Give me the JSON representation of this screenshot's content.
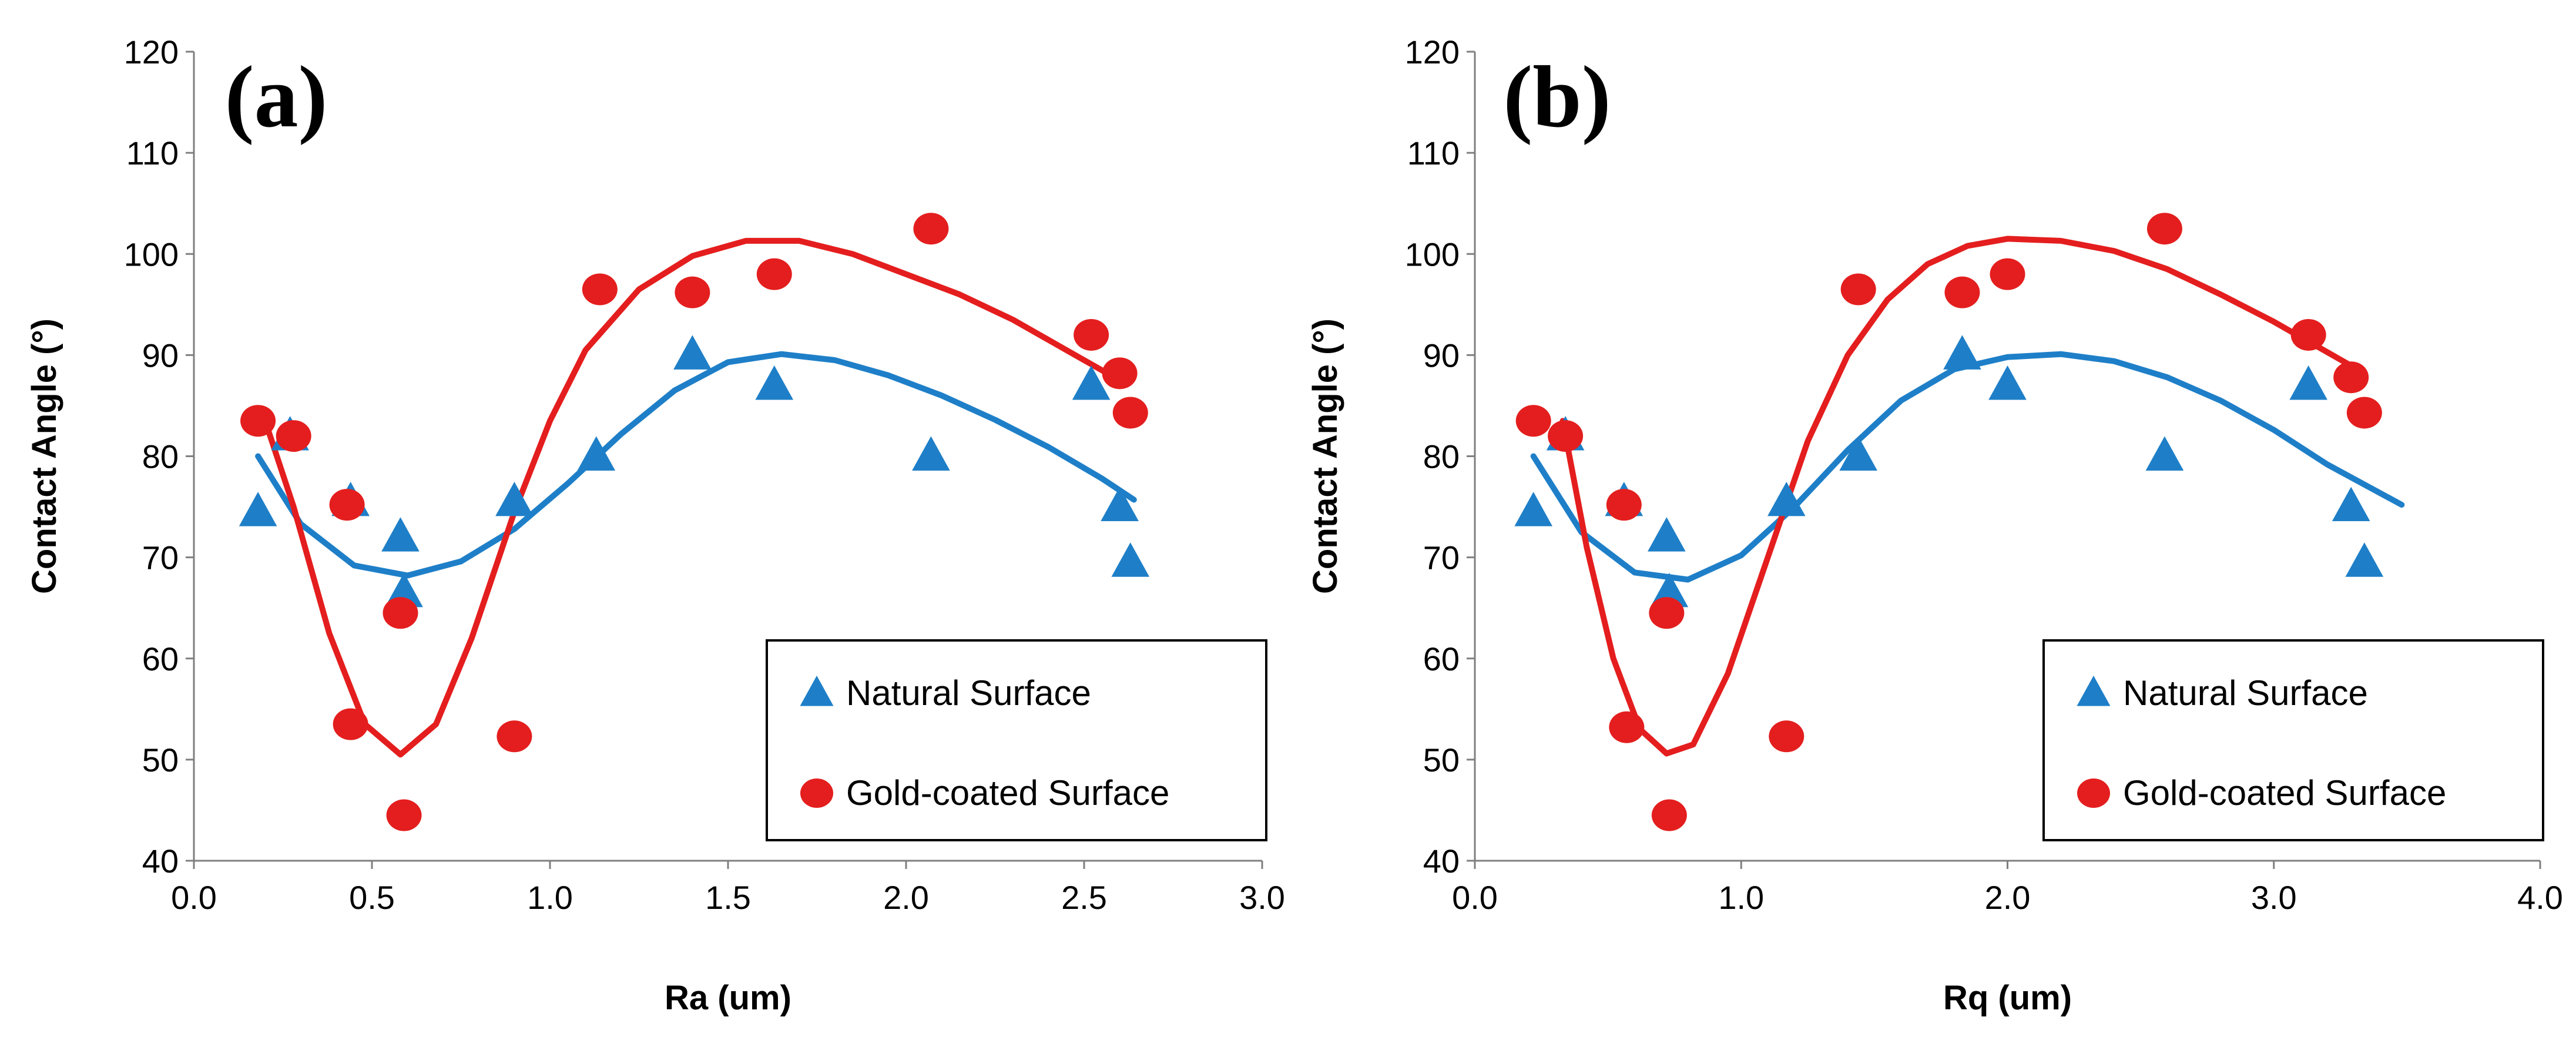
{
  "chart_data": [
    {
      "type": "scatter",
      "panel_label": "(a)",
      "xlabel": "Ra (um)",
      "ylabel": "Contact Angle (°)",
      "xlim": [
        0.0,
        3.0
      ],
      "ylim": [
        40,
        120
      ],
      "x_ticks": [
        "0.0",
        "0.5",
        "1.0",
        "1.5",
        "2.0",
        "2.5",
        "3.0"
      ],
      "y_ticks": [
        "40",
        "50",
        "60",
        "70",
        "80",
        "90",
        "100",
        "110",
        "120"
      ],
      "legend": [
        "Natural Surface",
        "Gold-coated Surface"
      ],
      "series": [
        {
          "name": "Natural Surface",
          "marker": "triangle",
          "color": "#1E7FC8",
          "x": [
            0.18,
            0.27,
            0.44,
            0.58,
            0.59,
            0.9,
            1.13,
            1.4,
            1.63,
            2.07,
            2.52,
            2.6,
            2.63
          ],
          "y": [
            74.5,
            82,
            75.5,
            72,
            66.5,
            75.5,
            80,
            90,
            87,
            80,
            87,
            75,
            69.5
          ],
          "trend": [
            [
              0.18,
              80
            ],
            [
              0.3,
              73.3
            ],
            [
              0.45,
              69.2
            ],
            [
              0.6,
              68.2
            ],
            [
              0.75,
              69.6
            ],
            [
              0.9,
              72.8
            ],
            [
              1.05,
              77.3
            ],
            [
              1.2,
              82.2
            ],
            [
              1.35,
              86.5
            ],
            [
              1.5,
              89.3
            ],
            [
              1.65,
              90.1
            ],
            [
              1.8,
              89.5
            ],
            [
              1.95,
              88
            ],
            [
              2.1,
              86
            ],
            [
              2.25,
              83.6
            ],
            [
              2.4,
              80.9
            ],
            [
              2.55,
              77.8
            ],
            [
              2.64,
              75.7
            ]
          ]
        },
        {
          "name": "Gold-coated Surface",
          "marker": "circle",
          "color": "#E41E1E",
          "x": [
            0.18,
            0.28,
            0.43,
            0.44,
            0.58,
            0.59,
            0.9,
            1.14,
            1.4,
            1.63,
            2.07,
            2.52,
            2.6,
            2.63
          ],
          "y": [
            83.5,
            82,
            75.2,
            53.5,
            64.5,
            44.5,
            52.3,
            96.5,
            96.2,
            98,
            102.5,
            92,
            88.2,
            84.3
          ],
          "trend": [
            [
              0.2,
              83.5
            ],
            [
              0.28,
              75
            ],
            [
              0.38,
              62.5
            ],
            [
              0.48,
              53.5
            ],
            [
              0.58,
              50.5
            ],
            [
              0.68,
              53.5
            ],
            [
              0.78,
              62
            ],
            [
              0.9,
              74.5
            ],
            [
              1.0,
              83.5
            ],
            [
              1.1,
              90.5
            ],
            [
              1.25,
              96.5
            ],
            [
              1.4,
              99.8
            ],
            [
              1.55,
              101.3
            ],
            [
              1.7,
              101.3
            ],
            [
              1.85,
              100
            ],
            [
              2.0,
              98
            ],
            [
              2.15,
              96
            ],
            [
              2.3,
              93.5
            ],
            [
              2.45,
              90.5
            ],
            [
              2.6,
              87.5
            ]
          ]
        }
      ]
    },
    {
      "type": "scatter",
      "panel_label": "(b)",
      "xlabel": "Rq (um)",
      "ylabel": "Contact Angle (°)",
      "xlim": [
        0.0,
        4.0
      ],
      "ylim": [
        40,
        120
      ],
      "x_ticks": [
        "0.0",
        "1.0",
        "2.0",
        "3.0",
        "4.0"
      ],
      "y_ticks": [
        "40",
        "50",
        "60",
        "70",
        "80",
        "90",
        "100",
        "110",
        "120"
      ],
      "legend": [
        "Natural Surface",
        "Gold-coated Surface"
      ],
      "series": [
        {
          "name": "Natural Surface",
          "marker": "triangle",
          "color": "#1E7FC8",
          "x": [
            0.22,
            0.34,
            0.56,
            0.72,
            0.73,
            1.17,
            1.44,
            1.83,
            2.0,
            2.59,
            3.13,
            3.29,
            3.34
          ],
          "y": [
            74.5,
            82,
            75.5,
            72,
            66.5,
            75.5,
            80,
            90,
            87,
            80,
            87,
            75,
            69.5
          ],
          "trend": [
            [
              0.22,
              80
            ],
            [
              0.4,
              72.5
            ],
            [
              0.6,
              68.5
            ],
            [
              0.8,
              67.8
            ],
            [
              1.0,
              70.2
            ],
            [
              1.2,
              75
            ],
            [
              1.4,
              80.6
            ],
            [
              1.6,
              85.5
            ],
            [
              1.8,
              88.6
            ],
            [
              2.0,
              89.8
            ],
            [
              2.2,
              90.1
            ],
            [
              2.4,
              89.4
            ],
            [
              2.6,
              87.8
            ],
            [
              2.8,
              85.5
            ],
            [
              3.0,
              82.6
            ],
            [
              3.2,
              79.2
            ],
            [
              3.48,
              75.2
            ]
          ]
        },
        {
          "name": "Gold-coated Surface",
          "marker": "circle",
          "color": "#E41E1E",
          "x": [
            0.22,
            0.34,
            0.56,
            0.57,
            0.72,
            0.73,
            1.17,
            1.44,
            1.83,
            2.0,
            2.59,
            3.13,
            3.29,
            3.34
          ],
          "y": [
            83.5,
            82,
            75.2,
            53.2,
            64.5,
            44.5,
            52.3,
            96.5,
            96.2,
            98,
            102.5,
            92,
            87.8,
            84.3
          ],
          "trend": [
            [
              0.33,
              83.5
            ],
            [
              0.42,
              71
            ],
            [
              0.52,
              60
            ],
            [
              0.62,
              53
            ],
            [
              0.72,
              50.6
            ],
            [
              0.82,
              51.5
            ],
            [
              0.95,
              58.5
            ],
            [
              1.1,
              70
            ],
            [
              1.25,
              81.5
            ],
            [
              1.4,
              90
            ],
            [
              1.55,
              95.5
            ],
            [
              1.7,
              99
            ],
            [
              1.85,
              100.8
            ],
            [
              2.0,
              101.5
            ],
            [
              2.2,
              101.3
            ],
            [
              2.4,
              100.3
            ],
            [
              2.6,
              98.5
            ],
            [
              2.8,
              96
            ],
            [
              3.0,
              93.3
            ],
            [
              3.32,
              88.5
            ]
          ]
        }
      ]
    }
  ]
}
